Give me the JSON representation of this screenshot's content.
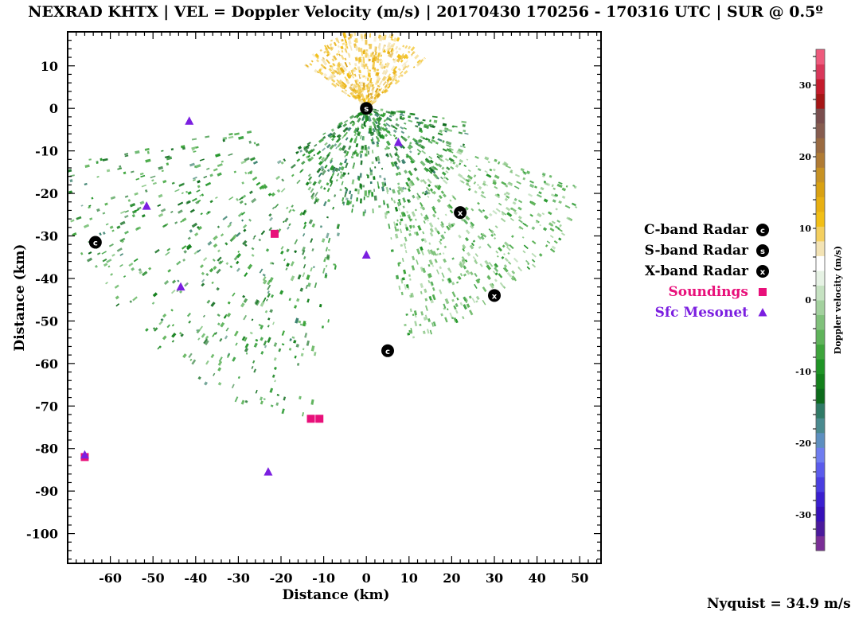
{
  "title": "NEXRAD KHTX | VEL = Doppler Velocity (m/s) | 20170430 170256 - 170316 UTC | SUR @ 0.5º",
  "nyquist_label": "Nyquist = 34.9 m/s",
  "legend": [
    {
      "label": "C-band Radar",
      "color": "#000000",
      "marker": "C"
    },
    {
      "label": "S-band Radar",
      "color": "#000000",
      "marker": "S"
    },
    {
      "label": "X-band Radar",
      "color": "#000000",
      "marker": "X"
    },
    {
      "label": "Soundings",
      "color": "#e8107a",
      "marker": "square"
    },
    {
      "label": "Sfc Mesonet",
      "color": "#7b1fe0",
      "marker": "triangle"
    }
  ],
  "chart_data": {
    "type": "scatter",
    "xlabel": "Distance (km)",
    "ylabel": "Distance (km)",
    "xlim": [
      -70,
      55
    ],
    "ylim": [
      -107,
      18
    ],
    "xticks": [
      -60,
      -50,
      -40,
      -30,
      -20,
      -10,
      0,
      10,
      20,
      30,
      40,
      50
    ],
    "yticks": [
      10,
      0,
      -10,
      -20,
      -30,
      -40,
      -50,
      -60,
      -70,
      -80,
      -90,
      -100
    ],
    "grid": false,
    "legend_position": "right",
    "series": [
      {
        "name": "C-band Radar",
        "marker": "C",
        "points": [
          [
            -63.5,
            -31.5
          ],
          [
            5,
            -57
          ]
        ]
      },
      {
        "name": "S-band Radar",
        "marker": "S",
        "points": [
          [
            0,
            0
          ]
        ]
      },
      {
        "name": "X-band Radar",
        "marker": "X",
        "points": [
          [
            22,
            -24.5
          ],
          [
            30,
            -44
          ]
        ]
      },
      {
        "name": "Soundings",
        "marker": "square",
        "points": [
          [
            -21.5,
            -29.5
          ],
          [
            -13,
            -73
          ],
          [
            -11,
            -73
          ],
          [
            -66,
            -82
          ]
        ]
      },
      {
        "name": "Sfc Mesonet",
        "marker": "triangle",
        "points": [
          [
            -41.5,
            -3
          ],
          [
            -51.5,
            -23
          ],
          [
            0,
            -34.5
          ],
          [
            7.5,
            -8
          ],
          [
            -43.5,
            -42
          ],
          [
            -66,
            -81.5
          ],
          [
            -23,
            -85.5
          ]
        ]
      }
    ],
    "colorbar": {
      "label": "Doppler velocity (m/s)",
      "range": [
        -35,
        35
      ],
      "ticks": [
        30,
        20,
        10,
        0,
        -10,
        -20,
        -30
      ],
      "colors": [
        "#7a2e96",
        "#4b1a9c",
        "#3610b8",
        "#3a1fcf",
        "#4a3ee0",
        "#5b5bec",
        "#6f7df0",
        "#5d8fc0",
        "#4a8a8f",
        "#2f7a66",
        "#0d6b1c",
        "#13801b",
        "#1f9426",
        "#3da43b",
        "#5fb35a",
        "#80c17b",
        "#a3d19e",
        "#c6e2c2",
        "#e6f2e4",
        "#ffffff",
        "#f3e3b4",
        "#f4cf5f",
        "#f2bf16",
        "#e8b012",
        "#d9a112",
        "#c79224",
        "#b07b34",
        "#9a6a40",
        "#865c4f",
        "#7a4d4d",
        "#a51616",
        "#c41b2c",
        "#d9375a",
        "#ee5a7c"
      ]
    },
    "velocity_field": {
      "radar": [
        0,
        0
      ],
      "regions": [
        {
          "name": "outbound-north",
          "velocity_ms": 10,
          "az_from_deg": -55,
          "az_to_deg": 50,
          "range_km": [
            0,
            18
          ]
        },
        {
          "name": "inbound-south",
          "velocity_ms": -11,
          "az_from_deg": 95,
          "az_to_deg": 240,
          "range_km": [
            0,
            25
          ]
        },
        {
          "name": "light-southeast",
          "velocity_ms": -5,
          "az_from_deg": 110,
          "az_to_deg": 170,
          "range_km": [
            20,
            55
          ]
        },
        {
          "name": "scattered-west",
          "velocity_ms": -10,
          "az_from_deg": 190,
          "az_to_deg": 260,
          "range_km": [
            25,
            75
          ]
        }
      ]
    }
  }
}
